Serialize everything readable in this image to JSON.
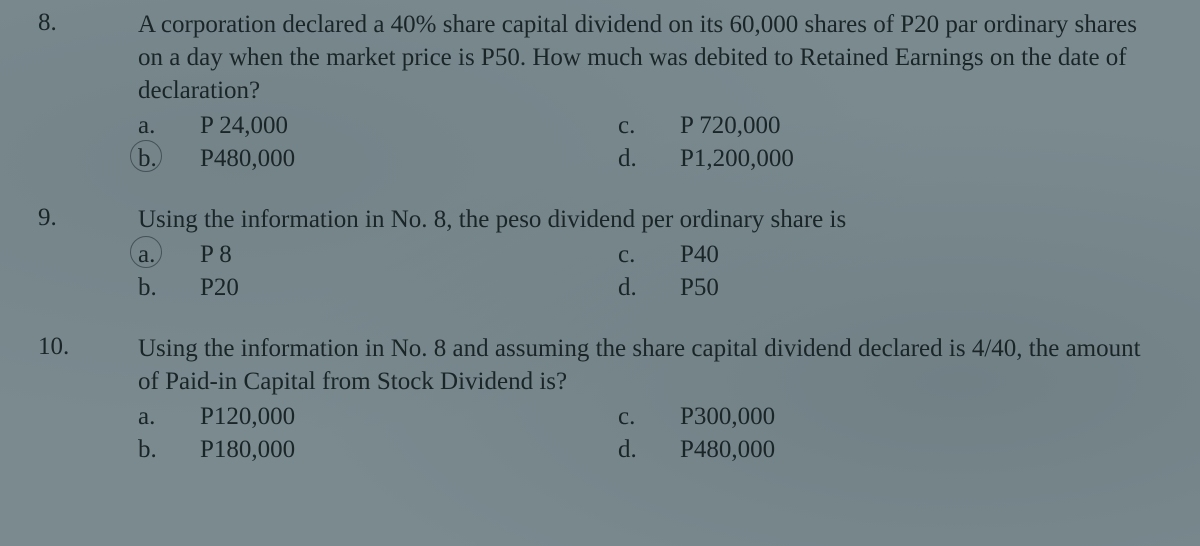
{
  "page": {
    "background_color": "#7a8a8f",
    "text_color": "#1a2528",
    "font_family": "Times New Roman",
    "base_font_size_pt": 19
  },
  "questions": [
    {
      "number": "8.",
      "text": "A corporation declared a 40% share capital dividend on its 60,000 shares of P20 par ordinary shares on a day when the market price is P50.  How much was debited to Retained Earnings on the date of declaration?",
      "options": {
        "a": {
          "letter": "a.",
          "value": "P  24,000",
          "circled": false
        },
        "b": {
          "letter": "b.",
          "value": "P480,000",
          "circled": true
        },
        "c": {
          "letter": "c.",
          "value": "P   720,000",
          "circled": false
        },
        "d": {
          "letter": "d.",
          "value": "P1,200,000",
          "circled": false
        }
      }
    },
    {
      "number": "9.",
      "text": "Using the information in No. 8, the peso dividend per ordinary share is",
      "options": {
        "a": {
          "letter": "a.",
          "value": "P 8",
          "circled": true
        },
        "b": {
          "letter": "b.",
          "value": "P20",
          "circled": false
        },
        "c": {
          "letter": "c.",
          "value": "P40",
          "circled": false
        },
        "d": {
          "letter": "d.",
          "value": "P50",
          "circled": false
        }
      }
    },
    {
      "number": "10.",
      "text": "Using the information in No. 8 and assuming the share capital dividend declared is 4/40, the amount of Paid-in Capital from Stock Dividend is?",
      "options": {
        "a": {
          "letter": "a.",
          "value": "P120,000",
          "circled": false
        },
        "b": {
          "letter": "b.",
          "value": "P180,000",
          "circled": false
        },
        "c": {
          "letter": "c.",
          "value": "P300,000",
          "circled": false
        },
        "d": {
          "letter": "d.",
          "value": "P480,000",
          "circled": false
        }
      }
    }
  ]
}
